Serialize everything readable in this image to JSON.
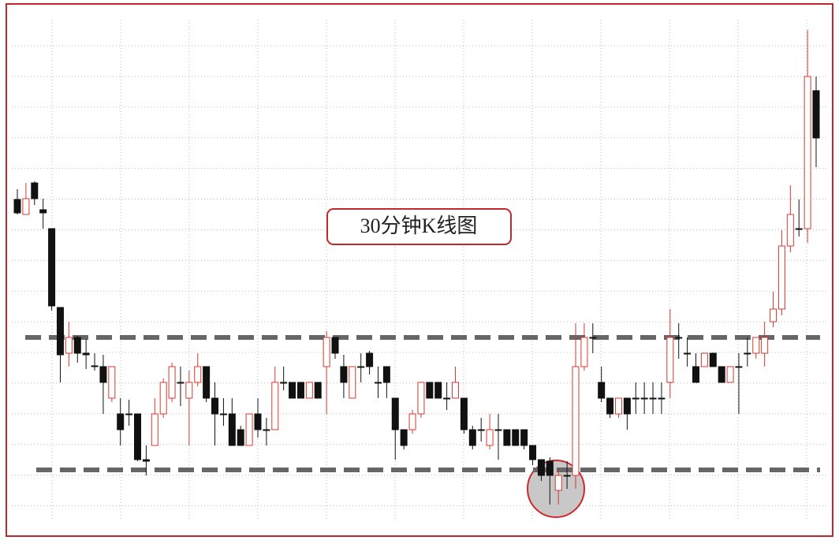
{
  "chart_data": {
    "type": "candlestick",
    "annotation": "30分钟K线图",
    "open": [
      40.7,
      38.8,
      42.8,
      39.4,
      37.0,
      27.0,
      21.2,
      23.2,
      21.2,
      19.6,
      19.5,
      15.5,
      13.5,
      13.5,
      13.5,
      7.7,
      9.5,
      13.5,
      15.5,
      17.5,
      15.5,
      17.5,
      19.5,
      15.5,
      13.5,
      13.5,
      11.5,
      9.5,
      13.5,
      11.5,
      11.5,
      17.5,
      17.5,
      17.5,
      15.5,
      17.5,
      19.5,
      23.2,
      19.5,
      15.5,
      19.5,
      21.2,
      17.5,
      19.5,
      15.5,
      11.5,
      11.5,
      13.5,
      17.5,
      17.5,
      15.5,
      15.5,
      15.5,
      11.5,
      11.5,
      9.5,
      11.5,
      11.5,
      11.5,
      11.5,
      9.5,
      7.7,
      7.5,
      3.8,
      5.7,
      5.7,
      19.5,
      23.2,
      17.5,
      15.5,
      13.5,
      15.5,
      15.5,
      15.5,
      15.5,
      15.5,
      17.5,
      23.2,
      21.2,
      19.5,
      19.5,
      21.2,
      19.5,
      17.5,
      19.5,
      21.2,
      21.2,
      21.2,
      25.2,
      26.8,
      34.8,
      37.0,
      37.0,
      54.5
    ],
    "high": [
      42.0,
      42.8,
      43.0,
      40.8,
      37.0,
      27.0,
      25.2,
      23.4,
      23.0,
      21.2,
      21.0,
      19.5,
      15.5,
      15.3,
      13.5,
      9.5,
      15.5,
      18.0,
      20.0,
      19.5,
      19.0,
      21.2,
      19.5,
      17.5,
      15.5,
      15.5,
      12.0,
      13.5,
      15.5,
      13.0,
      19.5,
      19.5,
      17.5,
      17.5,
      17.5,
      17.5,
      24.0,
      23.2,
      21.0,
      19.5,
      21.2,
      21.5,
      19.5,
      19.5,
      15.5,
      11.5,
      14.0,
      17.5,
      17.5,
      17.5,
      17.5,
      19.5,
      15.5,
      12.0,
      13.0,
      13.5,
      13.5,
      11.5,
      11.5,
      11.5,
      9.5,
      7.7,
      8.0,
      6.5,
      7.5,
      25.0,
      25.0,
      25.0,
      19.5,
      15.5,
      15.5,
      15.5,
      17.5,
      17.5,
      17.5,
      17.5,
      26.8,
      25.0,
      23.2,
      21.2,
      21.2,
      21.2,
      19.5,
      19.5,
      21.2,
      23.2,
      23.2,
      25.2,
      29.0,
      36.8,
      42.5,
      40.7,
      62.2,
      56.3
    ],
    "low": [
      38.8,
      38.8,
      40.0,
      37.0,
      26.6,
      17.5,
      19.5,
      20.0,
      19.2,
      19.0,
      13.5,
      15.0,
      9.5,
      12.0,
      7.5,
      5.7,
      9.5,
      13.0,
      15.0,
      14.5,
      9.5,
      17.0,
      15.0,
      9.5,
      12.0,
      9.5,
      9.5,
      9.5,
      10.5,
      9.5,
      11.5,
      16.5,
      15.5,
      15.5,
      15.5,
      15.5,
      13.5,
      20.5,
      15.5,
      15.5,
      17.5,
      18.5,
      15.5,
      15.5,
      7.7,
      9.0,
      11.0,
      13.0,
      15.5,
      15.5,
      14.0,
      15.5,
      11.0,
      9.0,
      10.0,
      9.0,
      7.7,
      9.5,
      9.5,
      9.0,
      7.0,
      5.0,
      2.0,
      2.0,
      4.0,
      4.0,
      19.0,
      21.2,
      15.0,
      13.0,
      13.0,
      11.5,
      13.5,
      13.5,
      13.5,
      13.5,
      15.5,
      20.5,
      19.5,
      17.5,
      19.5,
      19.5,
      17.5,
      17.5,
      13.5,
      19.5,
      20.5,
      19.5,
      24.5,
      26.0,
      34.0,
      36.0,
      35.2,
      44.8
    ],
    "close": [
      39.0,
      40.8,
      40.8,
      39.0,
      27.2,
      21.0,
      23.2,
      21.2,
      21.0,
      19.5,
      17.5,
      19.5,
      11.5,
      13.4,
      7.7,
      7.5,
      13.5,
      17.5,
      19.5,
      17.4,
      17.5,
      19.5,
      15.5,
      13.5,
      13.4,
      9.5,
      9.5,
      13.5,
      11.5,
      11.4,
      17.5,
      17.4,
      15.5,
      15.5,
      17.5,
      15.5,
      23.2,
      21.2,
      17.5,
      19.5,
      19.4,
      19.5,
      17.4,
      17.5,
      11.5,
      9.5,
      13.5,
      17.5,
      15.5,
      15.5,
      15.4,
      17.5,
      11.5,
      9.5,
      11.4,
      11.5,
      11.4,
      9.5,
      9.5,
      9.5,
      7.7,
      5.7,
      5.7,
      5.7,
      5.6,
      19.5,
      23.2,
      23.1,
      15.5,
      13.5,
      15.5,
      13.5,
      15.4,
      15.4,
      15.4,
      15.4,
      23.2,
      23.1,
      21.1,
      17.5,
      21.2,
      19.5,
      17.5,
      19.5,
      19.4,
      21.1,
      23.2,
      23.2,
      26.8,
      34.8,
      38.8,
      36.9,
      56.3,
      48.5
    ],
    "reference_lines": [
      23.2,
      6.4
    ],
    "ylim": [
      0,
      63
    ],
    "grid": true,
    "up_color": "#d9382c",
    "down_color": "#111111",
    "reference_color": "#666666"
  }
}
